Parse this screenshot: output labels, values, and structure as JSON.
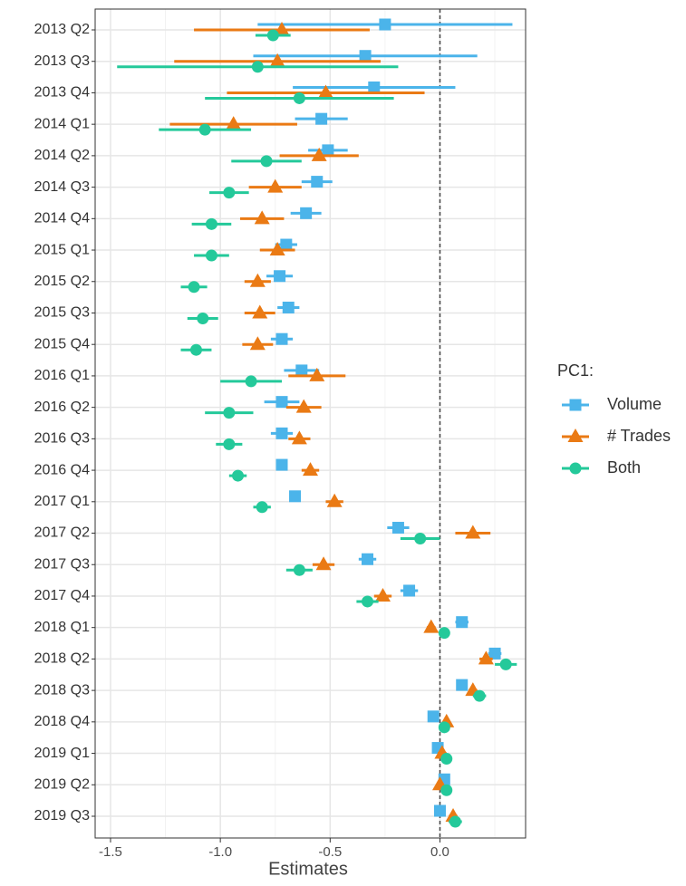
{
  "chart_data": {
    "type": "errorbar",
    "x_label": "Estimates",
    "legend_title": "PC1:",
    "legend_position": "right",
    "categories": [
      "2013 Q2",
      "2013 Q3",
      "2013 Q4",
      "2014 Q1",
      "2014 Q2",
      "2014 Q3",
      "2014 Q4",
      "2015 Q1",
      "2015 Q2",
      "2015 Q3",
      "2015 Q4",
      "2016 Q1",
      "2016 Q2",
      "2016 Q3",
      "2016 Q4",
      "2017 Q1",
      "2017 Q2",
      "2017 Q3",
      "2017 Q4",
      "2018 Q1",
      "2018 Q2",
      "2018 Q3",
      "2018 Q4",
      "2019 Q1",
      "2019 Q2",
      "2019 Q3"
    ],
    "series": [
      {
        "name": "Volume",
        "color": "#4bb4ea",
        "marker": "square",
        "values": [
          -0.25,
          -0.34,
          -0.3,
          -0.54,
          -0.51,
          -0.56,
          -0.61,
          -0.7,
          -0.73,
          -0.69,
          -0.72,
          -0.63,
          -0.72,
          -0.72,
          -0.72,
          -0.66,
          -0.19,
          -0.33,
          -0.14,
          0.1,
          0.25,
          0.1,
          -0.03,
          -0.01,
          0.02,
          0.0
        ],
        "errors": [
          0.58,
          0.51,
          0.37,
          0.12,
          0.09,
          0.07,
          0.07,
          0.05,
          0.06,
          0.05,
          0.05,
          0.08,
          0.08,
          0.05,
          0.02,
          0.02,
          0.05,
          0.04,
          0.04,
          0.03,
          0.03,
          0.02,
          0.02,
          0.02,
          0.01,
          0.02
        ]
      },
      {
        "name": "# Trades",
        "color": "#ea7a14",
        "marker": "triangle",
        "values": [
          -0.72,
          -0.74,
          -0.52,
          -0.94,
          -0.55,
          -0.75,
          -0.81,
          -0.74,
          -0.83,
          -0.82,
          -0.83,
          -0.56,
          -0.62,
          -0.64,
          -0.59,
          -0.48,
          0.15,
          -0.53,
          -0.26,
          -0.04,
          0.21,
          0.15,
          0.03,
          0.01,
          0.0,
          0.06
        ],
        "errors": [
          0.4,
          0.47,
          0.45,
          0.29,
          0.18,
          0.12,
          0.1,
          0.08,
          0.06,
          0.07,
          0.07,
          0.13,
          0.08,
          0.05,
          0.04,
          0.04,
          0.08,
          0.05,
          0.04,
          0.02,
          0.03,
          0.02,
          0.01,
          0.02,
          0.01,
          0.02
        ]
      },
      {
        "name": "Both",
        "color": "#24c99a",
        "marker": "circle",
        "values": [
          -0.76,
          -0.83,
          -0.64,
          -1.07,
          -0.79,
          -0.96,
          -1.04,
          -1.04,
          -1.12,
          -1.08,
          -1.11,
          -0.86,
          -0.96,
          -0.96,
          -0.92,
          -0.81,
          -0.09,
          -0.64,
          -0.33,
          0.02,
          0.3,
          0.18,
          0.02,
          0.03,
          0.03,
          0.07
        ],
        "errors": [
          0.08,
          0.64,
          0.43,
          0.21,
          0.16,
          0.09,
          0.09,
          0.08,
          0.06,
          0.07,
          0.07,
          0.14,
          0.11,
          0.06,
          0.04,
          0.04,
          0.09,
          0.06,
          0.05,
          0.02,
          0.05,
          0.03,
          0.01,
          0.02,
          0.01,
          0.03
        ]
      }
    ],
    "xlim": [
      -1.57,
      0.39
    ],
    "xticks": [
      -1.5,
      {
        "value": -1.0,
        "label": "-1.0"
      },
      -0.5,
      {
        "value": 0.0,
        "label": "0.0"
      }
    ],
    "x_minor_ticks": [
      -1.25,
      -0.75,
      -0.25,
      0.25
    ],
    "reference_line": 0,
    "grid": true
  }
}
